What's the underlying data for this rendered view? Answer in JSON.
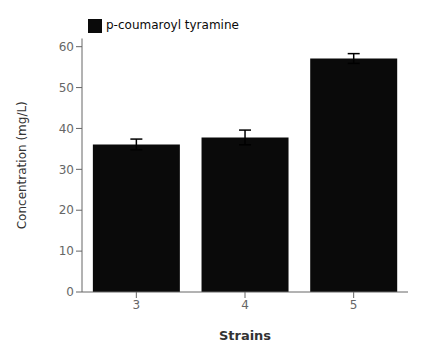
{
  "chart_data": {
    "type": "bar",
    "xlabel": "Strains",
    "ylabel": "Concentration (mg/L)",
    "categories": [
      "3",
      "4",
      "5"
    ],
    "series": [
      {
        "name": "p-coumaroyl tyramine",
        "color": "#0a0a0a",
        "values": [
          36.1,
          37.8,
          57.1
        ],
        "errors": [
          1.3,
          1.8,
          1.2
        ]
      }
    ],
    "ylim": [
      0,
      62
    ],
    "yticks": [
      0,
      10,
      20,
      30,
      40,
      50,
      60
    ],
    "grid": false,
    "legend": "upper left"
  }
}
